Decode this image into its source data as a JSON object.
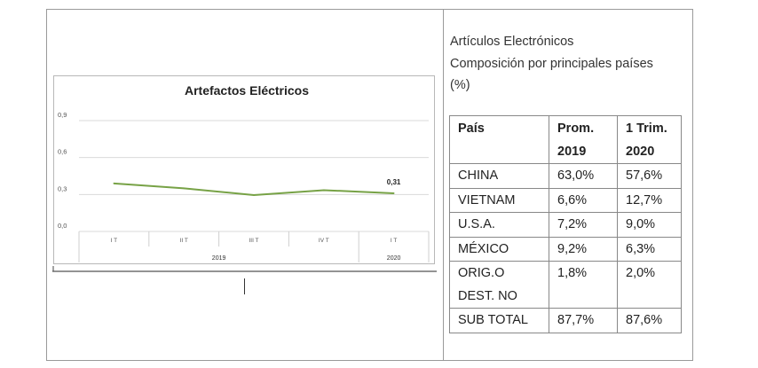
{
  "chart_data": {
    "type": "line",
    "title": "Artefactos Eléctricos",
    "categories": [
      "I T",
      "II T",
      "III T",
      "IV T",
      "I T"
    ],
    "years": [
      {
        "label": "2019",
        "span": [
          0,
          3
        ]
      },
      {
        "label": "2020",
        "span": [
          4,
          4
        ]
      }
    ],
    "series": [
      {
        "values": [
          0.39,
          0.35,
          0.295,
          0.335,
          0.31
        ],
        "color": "#77a246"
      }
    ],
    "data_labels": [
      {
        "index": 4,
        "text": "0,31"
      }
    ],
    "yticks": [
      "0,0",
      "0,3",
      "0,6",
      "0,9"
    ],
    "ylim": [
      0,
      0.9
    ],
    "grid": true
  },
  "panel": {
    "title_line1": "Artículos Electrónicos",
    "title_line2": "Composición por principales países",
    "title_line3": "(%)"
  },
  "table": {
    "headers": [
      [
        "País"
      ],
      [
        "Prom.",
        "2019"
      ],
      [
        "1 Trim.",
        "2020"
      ]
    ],
    "rows": [
      [
        [
          "CHINA"
        ],
        [
          "63,0%"
        ],
        [
          "57,6%"
        ]
      ],
      [
        [
          "VIETNAM"
        ],
        [
          "6,6%"
        ],
        [
          "12,7%"
        ]
      ],
      [
        [
          "U.S.A."
        ],
        [
          "7,2%"
        ],
        [
          "9,0%"
        ]
      ],
      [
        [
          "MÉXICO"
        ],
        [
          "9,2%"
        ],
        [
          "6,3%"
        ]
      ],
      [
        [
          "ORIG.O",
          "DEST. NO"
        ],
        [
          "1,8%"
        ],
        [
          "2,0%"
        ]
      ],
      [
        [
          "SUB TOTAL"
        ],
        [
          "87,7%"
        ],
        [
          "87,6%"
        ]
      ]
    ]
  }
}
